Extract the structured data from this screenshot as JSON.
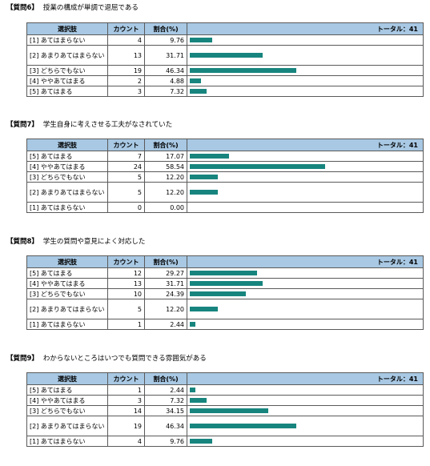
{
  "questions": [
    {
      "number": "【質問6】",
      "text": "授業の構成が単調で退屈である",
      "header": {
        "option": "選択肢",
        "count": "カウント",
        "percent": "割合(%)",
        "total": "トータル：41"
      },
      "rows": [
        {
          "label": "[1] あてはまらない",
          "count": "4",
          "percent": "9.76",
          "pct": 9.76
        },
        {
          "label": "[2] あまりあてはまらない",
          "count": "13",
          "percent": "31.71",
          "pct": 31.71
        },
        {
          "label": "[3] どちらでもない",
          "count": "19",
          "percent": "46.34",
          "pct": 46.34
        },
        {
          "label": "[4] ややあてはまる",
          "count": "2",
          "percent": "4.88",
          "pct": 4.88
        },
        {
          "label": "[5] あてはまる",
          "count": "3",
          "percent": "7.32",
          "pct": 7.32
        }
      ]
    },
    {
      "number": "【質問7】",
      "text": "学生自身に考えさせる工夫がなされていた",
      "header": {
        "option": "選択肢",
        "count": "カウント",
        "percent": "割合(%)",
        "total": "トータル：41"
      },
      "rows": [
        {
          "label": "[5] あてはまる",
          "count": "7",
          "percent": "17.07",
          "pct": 17.07
        },
        {
          "label": "[4] ややあてはまる",
          "count": "24",
          "percent": "58.54",
          "pct": 58.54
        },
        {
          "label": "[3] どちらでもない",
          "count": "5",
          "percent": "12.20",
          "pct": 12.2
        },
        {
          "label": "[2] あまりあてはまらない",
          "count": "5",
          "percent": "12.20",
          "pct": 12.2
        },
        {
          "label": "[1] あてはまらない",
          "count": "0",
          "percent": "0.00",
          "pct": 0
        }
      ]
    },
    {
      "number": "【質問8】",
      "text": "学生の質問や意見によく対応した",
      "header": {
        "option": "選択肢",
        "count": "カウント",
        "percent": "割合(%)",
        "total": "トータル：41"
      },
      "rows": [
        {
          "label": "[5] あてはまる",
          "count": "12",
          "percent": "29.27",
          "pct": 29.27
        },
        {
          "label": "[4] ややあてはまる",
          "count": "13",
          "percent": "31.71",
          "pct": 31.71
        },
        {
          "label": "[3] どちらでもない",
          "count": "10",
          "percent": "24.39",
          "pct": 24.39
        },
        {
          "label": "[2] あまりあてはまらない",
          "count": "5",
          "percent": "12.20",
          "pct": 12.2
        },
        {
          "label": "[1] あてはまらない",
          "count": "1",
          "percent": "2.44",
          "pct": 2.44
        }
      ]
    },
    {
      "number": "【質問9】",
      "text": "わからないところはいつでも質問できる雰囲気がある",
      "header": {
        "option": "選択肢",
        "count": "カウント",
        "percent": "割合(%)",
        "total": "トータル：41"
      },
      "rows": [
        {
          "label": "[5] あてはまる",
          "count": "1",
          "percent": "2.44",
          "pct": 2.44
        },
        {
          "label": "[4] ややあてはまる",
          "count": "3",
          "percent": "7.32",
          "pct": 7.32
        },
        {
          "label": "[3] どちらでもない",
          "count": "14",
          "percent": "34.15",
          "pct": 34.15
        },
        {
          "label": "[2] あまりあてはまらない",
          "count": "19",
          "percent": "46.34",
          "pct": 46.34
        },
        {
          "label": "[1] あてはまらない",
          "count": "4",
          "percent": "9.76",
          "pct": 9.76
        }
      ]
    }
  ],
  "colors": {
    "header_bg": "#a8c8e3",
    "bar": "#17857e",
    "border": "#5a5a5a"
  }
}
